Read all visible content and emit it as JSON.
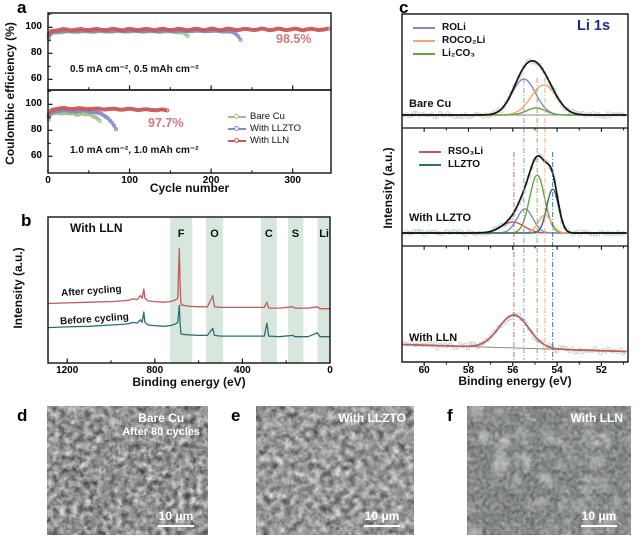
{
  "panel_a": {
    "label": "a",
    "xlabel": "Cycle number",
    "ylabel": "Coulombic efficiency (%)",
    "top_condition": "0.5 mA cm⁻², 0.5 mAh cm⁻²",
    "top_annotation": "98.5%",
    "bottom_condition": "1.0 mA cm⁻², 1.0 mAh cm⁻²",
    "bottom_annotation": "97.7%",
    "annotation_color": "#d0787c"
  },
  "panel_b": {
    "label": "b",
    "title": "With LLN",
    "xlabel": "Binding energy (eV)",
    "ylabel": "Intensity (a.u.)",
    "after_label": "After cycling",
    "before_label": "Before cycling"
  },
  "panel_c": {
    "label": "c",
    "title": "Li 1s",
    "title_color": "#1f2d86",
    "xlabel": "Binding energy (eV)",
    "ylabel": "Intensity (a.u.)",
    "subplot_labels": {
      "bare": "Bare Cu",
      "llzto": "With LLZTO",
      "lln": "With LLN"
    }
  },
  "panel_d": {
    "label": "d",
    "line1": "Bare Cu",
    "line2": "After 80 cycles",
    "scale": "10 μm"
  },
  "panel_e": {
    "label": "e",
    "line1": "With LLZTO",
    "scale": "10 μm"
  },
  "panel_f": {
    "label": "f",
    "line1": "With LLN",
    "scale": "10 μm"
  },
  "chart_data": [
    {
      "id": "a_top",
      "type": "scatter",
      "xlabel": "Cycle number",
      "ylabel": "Coulombic efficiency (%)",
      "xlim": [
        0,
        347
      ],
      "ylim": [
        50.5,
        111
      ],
      "xticks": [
        0,
        100,
        200,
        300
      ],
      "xminor": [
        50,
        150,
        250
      ],
      "yticks": [
        60,
        80,
        100
      ],
      "yminor": [
        70,
        90,
        110
      ],
      "condition": "0.5 mA cm⁻², 0.5 mAh cm⁻²",
      "annotation": "98.5%",
      "series": [
        {
          "name": "Bare Cu",
          "color": "#9cc488",
          "wiggle": 0.28,
          "points": [
            [
              1,
              90.5
            ],
            [
              2,
              93
            ],
            [
              4,
              95
            ],
            [
              7,
              95.8
            ],
            [
              12,
              96.2
            ],
            [
              20,
              96.5
            ],
            [
              35,
              96.7
            ],
            [
              60,
              96.8
            ],
            [
              90,
              96.9
            ],
            [
              120,
              96.8
            ],
            [
              145,
              96.7
            ],
            [
              158,
              96.5
            ],
            [
              164,
              96.0
            ],
            [
              168,
              95.0
            ],
            [
              170,
              93.8
            ],
            [
              172,
              92.5
            ]
          ]
        },
        {
          "name": "With LLZTO",
          "color": "#8489c6",
          "wiggle": 0.22,
          "points": [
            [
              1,
              92.5
            ],
            [
              3,
              95
            ],
            [
              6,
              96.3
            ],
            [
              12,
              96.8
            ],
            [
              25,
              97.1
            ],
            [
              50,
              97.2
            ],
            [
              90,
              97.3
            ],
            [
              130,
              97.3
            ],
            [
              170,
              97.2
            ],
            [
              195,
              97.2
            ],
            [
              210,
              97.1
            ],
            [
              220,
              96.8
            ],
            [
              226,
              96.2
            ],
            [
              230,
              95.2
            ],
            [
              233,
              93.5
            ],
            [
              235,
              91.5
            ],
            [
              237,
              89.5
            ],
            [
              238,
              87.5
            ]
          ]
        },
        {
          "name": "With LLN",
          "color": "#c9595c",
          "wiggle": 0.5,
          "points": [
            [
              1,
              94.5
            ],
            [
              2,
              96.5
            ],
            [
              5,
              97.5
            ],
            [
              10,
              97.9
            ],
            [
              25,
              98.1
            ],
            [
              60,
              98.2
            ],
            [
              120,
              98.3
            ],
            [
              200,
              98.4
            ],
            [
              280,
              98.4
            ],
            [
              345,
              98.3
            ]
          ]
        }
      ]
    },
    {
      "id": "a_bottom",
      "type": "scatter",
      "xlim": [
        0,
        347
      ],
      "ylim": [
        50.5,
        111
      ],
      "xticks": [
        0,
        100,
        200,
        300
      ],
      "xminor": [
        50,
        150,
        250
      ],
      "yticks": [
        60,
        80,
        100
      ],
      "yminor": [
        70,
        90,
        110
      ],
      "condition": "1.0 mA cm⁻², 1.0 mAh cm⁻²",
      "annotation": "97.7%",
      "legend": [
        {
          "label": "Bare Cu",
          "color": "#9cc488"
        },
        {
          "label": "With LLZTO",
          "color": "#8489c6"
        },
        {
          "label": "With LLN",
          "color": "#c9595c"
        }
      ],
      "series": [
        {
          "name": "Bare Cu",
          "color": "#9cc488",
          "wiggle": 0.45,
          "points": [
            [
              1,
              88
            ],
            [
              2,
              90.5
            ],
            [
              4,
              92
            ],
            [
              8,
              93
            ],
            [
              14,
              93.4
            ],
            [
              20,
              93.2
            ],
            [
              26,
              92.4
            ],
            [
              31,
              93.3
            ],
            [
              36,
              92.2
            ],
            [
              41,
              93.0
            ],
            [
              46,
              91.8
            ],
            [
              51,
              92.6
            ],
            [
              56,
              91.0
            ],
            [
              60,
              89.5
            ],
            [
              63,
              87.5
            ],
            [
              65,
              85.5
            ]
          ]
        },
        {
          "name": "With LLZTO",
          "color": "#8489c6",
          "wiggle": 0.35,
          "points": [
            [
              1,
              90
            ],
            [
              3,
              92.5
            ],
            [
              6,
              94
            ],
            [
              10,
              94.8
            ],
            [
              18,
              95.1
            ],
            [
              28,
              95.0
            ],
            [
              38,
              94.6
            ],
            [
              48,
              95.0
            ],
            [
              56,
              94.2
            ],
            [
              62,
              93.2
            ],
            [
              68,
              91.8
            ],
            [
              73,
              89.8
            ],
            [
              77,
              87.2
            ],
            [
              80,
              84.5
            ],
            [
              82,
              82
            ],
            [
              84,
              80
            ],
            [
              85,
              79
            ]
          ]
        },
        {
          "name": "With LLN",
          "color": "#c9595c",
          "wiggle": 0.35,
          "points": [
            [
              1,
              92
            ],
            [
              2,
              94.5
            ],
            [
              5,
              96
            ],
            [
              10,
              96.7
            ],
            [
              20,
              96.8
            ],
            [
              40,
              96.6
            ],
            [
              70,
              96.4
            ],
            [
              100,
              96.1
            ],
            [
              125,
              95.8
            ],
            [
              140,
              95.6
            ],
            [
              148,
              95.4
            ]
          ]
        }
      ]
    },
    {
      "id": "b",
      "type": "line",
      "title": "With LLN",
      "xlabel": "Binding energy (eV)",
      "ylabel": "Intensity (a.u.)",
      "xlim": [
        1288,
        0
      ],
      "xticks": [
        1200,
        800,
        400,
        0
      ],
      "xminor": [
        1000,
        600,
        200
      ],
      "band_color": "#d7e7de",
      "bands": [
        {
          "label": "F",
          "range": [
            730,
            629
          ],
          "label_ev": 680
        },
        {
          "label": "O",
          "range": [
            566,
            488
          ],
          "label_ev": 527
        },
        {
          "label": "C",
          "range": [
            315,
            243
          ],
          "label_ev": 279
        },
        {
          "label": "S",
          "range": [
            192,
            122
          ],
          "label_ev": 158
        },
        {
          "label": "Li",
          "range": [
            57,
            0
          ],
          "label_ev": 27
        }
      ],
      "series": [
        {
          "name": "After cycling",
          "color": "#c05a5e",
          "offset": 310,
          "points": [
            [
              1288,
              0.1
            ],
            [
              1200,
              0.11
            ],
            [
              1100,
              0.12
            ],
            [
              1000,
              0.13
            ],
            [
              950,
              0.14
            ],
            [
              920,
              0.15
            ],
            [
              900,
              0.17
            ],
            [
              880,
              0.16
            ],
            [
              866,
              0.22
            ],
            [
              858,
              0.18
            ],
            [
              850,
              0.32
            ],
            [
              845,
              0.18
            ],
            [
              830,
              0.14
            ],
            [
              800,
              0.13
            ],
            [
              760,
              0.12
            ],
            [
              730,
              0.13
            ],
            [
              710,
              0.15
            ],
            [
              695,
              0.18
            ],
            [
              688,
              0.95
            ],
            [
              684,
              0.3
            ],
            [
              680,
              0.08
            ],
            [
              650,
              0.06
            ],
            [
              600,
              0.05
            ],
            [
              560,
              0.05
            ],
            [
              535,
              0.22
            ],
            [
              528,
              0.05
            ],
            [
              500,
              0.04
            ],
            [
              400,
              0.04
            ],
            [
              300,
              0.04
            ],
            [
              288,
              0.12
            ],
            [
              280,
              0.03
            ],
            [
              230,
              0.03
            ],
            [
              170,
              0.05
            ],
            [
              160,
              0.03
            ],
            [
              100,
              0.03
            ],
            [
              58,
              0.05
            ],
            [
              45,
              0.02
            ],
            [
              0,
              0.02
            ]
          ]
        },
        {
          "name": "Before cycling",
          "color": "#2e6f74",
          "offset": 338,
          "points": [
            [
              1288,
              0.16
            ],
            [
              1200,
              0.17
            ],
            [
              1100,
              0.18
            ],
            [
              1000,
              0.2
            ],
            [
              950,
              0.21
            ],
            [
              920,
              0.22
            ],
            [
              900,
              0.24
            ],
            [
              880,
              0.23
            ],
            [
              866,
              0.28
            ],
            [
              858,
              0.24
            ],
            [
              850,
              0.4
            ],
            [
              845,
              0.24
            ],
            [
              830,
              0.2
            ],
            [
              800,
              0.19
            ],
            [
              760,
              0.18
            ],
            [
              730,
              0.19
            ],
            [
              710,
              0.21
            ],
            [
              695,
              0.24
            ],
            [
              688,
              0.5
            ],
            [
              684,
              0.2
            ],
            [
              680,
              0.06
            ],
            [
              650,
              0.05
            ],
            [
              600,
              0.04
            ],
            [
              560,
              0.04
            ],
            [
              535,
              0.15
            ],
            [
              528,
              0.04
            ],
            [
              500,
              0.03
            ],
            [
              400,
              0.03
            ],
            [
              300,
              0.03
            ],
            [
              288,
              0.23
            ],
            [
              280,
              0.03
            ],
            [
              230,
              0.02
            ],
            [
              170,
              0.04
            ],
            [
              160,
              0.02
            ],
            [
              100,
              0.02
            ],
            [
              58,
              0.08
            ],
            [
              45,
              0.02
            ],
            [
              0,
              0.02
            ]
          ]
        }
      ]
    },
    {
      "id": "c_axis",
      "type": "line",
      "title": "Li 1s",
      "xlabel": "Binding energy (eV)",
      "xlim": [
        61.0,
        50.8
      ],
      "xticks": [
        60,
        58,
        56,
        54,
        52
      ],
      "xminor": [
        61,
        59,
        57,
        55,
        53,
        51
      ],
      "guides": [
        {
          "x": 55.95,
          "color": "#bf5a5e",
          "start": "mid"
        },
        {
          "x": 55.5,
          "color": "#8489c6",
          "start": "top"
        },
        {
          "x": 54.9,
          "color": "#a09a40",
          "start": "top"
        },
        {
          "x": 54.55,
          "color": "#f0a771",
          "start": "top"
        },
        {
          "x": 54.2,
          "color": "#2e6f74",
          "start": "mid"
        }
      ]
    },
    {
      "id": "c_bare",
      "name": "Bare Cu",
      "legend": [
        {
          "label": "ROLi",
          "color": "#8489c6"
        },
        {
          "label": "ROCO₂Li",
          "color": "#f0a771"
        },
        {
          "label": "Li₂CO₃",
          "color": "#69a23f"
        }
      ],
      "components": [
        {
          "label": "ROLi",
          "color": "#8489c6",
          "center": 55.5,
          "fwhm": 1.25,
          "amp": 36
        },
        {
          "label": "ROCO₂Li",
          "color": "#f0a771",
          "center": 54.6,
          "fwhm": 1.35,
          "amp": 30
        },
        {
          "label": "Li₂CO₃",
          "color": "#69a23f",
          "center": 54.95,
          "fwhm": 1.0,
          "amp": 7
        }
      ]
    },
    {
      "id": "c_llzto",
      "name": "With LLZTO",
      "legend": [
        {
          "label": "RSO₃Li",
          "color": "#bf5a5e"
        },
        {
          "label": "LLZTO",
          "color": "#2e6f74"
        }
      ],
      "components": [
        {
          "label": "RSO₃Li",
          "color": "#bf5a5e",
          "center": 56.0,
          "fwhm": 1.2,
          "amp": 11
        },
        {
          "label": "ROLi",
          "color": "#8489c6",
          "center": 55.45,
          "fwhm": 0.85,
          "amp": 24
        },
        {
          "label": "Li₂CO₃",
          "color": "#69a23f",
          "center": 54.9,
          "fwhm": 0.8,
          "amp": 58
        },
        {
          "label": "ROCO₂Li",
          "color": "#f0a771",
          "center": 54.55,
          "fwhm": 0.7,
          "amp": 18
        },
        {
          "label": "LLZTO",
          "color": "#2e6f74",
          "center": 54.2,
          "fwhm": 0.62,
          "amp": 44
        }
      ]
    },
    {
      "id": "c_lln",
      "name": "With LLN",
      "components": [
        {
          "label": "RSO₃Li",
          "color": "#bf5a5e",
          "center": 55.95,
          "fwhm": 1.6,
          "amp": 33
        }
      ]
    }
  ]
}
